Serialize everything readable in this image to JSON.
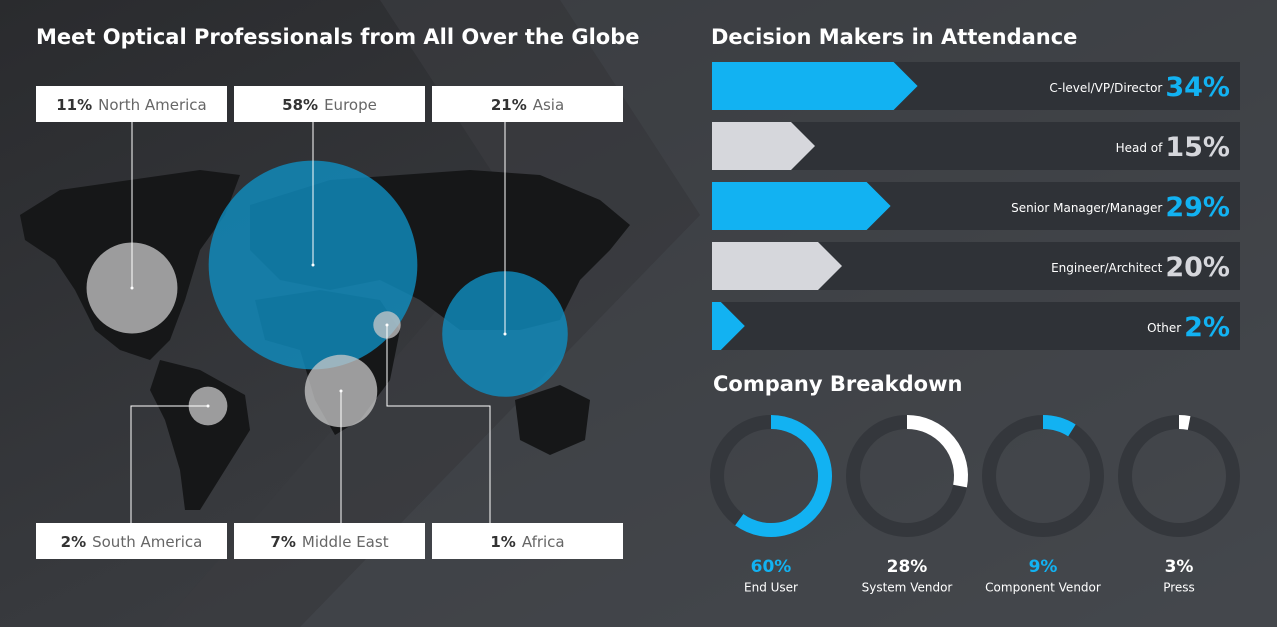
{
  "chart_data": [
    {
      "type": "bubble",
      "title": "Meet Optical Professionals from All Over the Globe",
      "categories": [
        "North America",
        "Europe",
        "Asia",
        "South America",
        "Middle East",
        "Africa"
      ],
      "values": [
        11,
        58,
        21,
        2,
        7,
        1
      ],
      "value_labels": [
        "11%",
        "58%",
        "21%",
        "2%",
        "7%",
        "1%"
      ],
      "colors": [
        "#c9c9c9",
        "#0f8fc2",
        "#0f8fc2",
        "#c9c9c9",
        "#c9c9c9",
        "#c9c9c9"
      ]
    },
    {
      "type": "hbar",
      "title": "Decision Makers in Attendance",
      "categories": [
        "C-level/VP/Director",
        "Head of",
        "Senior Manager/Manager",
        "Engineer/Architect",
        "Other"
      ],
      "values": [
        34,
        15,
        29,
        20,
        2
      ],
      "value_labels": [
        "34%",
        "15%",
        "29%",
        "20%",
        "2%"
      ],
      "colors": [
        "#12b2f2",
        "#d6d7dc",
        "#12b2f2",
        "#d6d7dc",
        "#12b2f2"
      ]
    },
    {
      "type": "donut",
      "title": "Company Breakdown",
      "categories": [
        "End User",
        "System Vendor",
        "Component Vendor",
        "Press"
      ],
      "values": [
        60,
        28,
        9,
        3
      ],
      "value_labels": [
        "60%",
        "28%",
        "9%",
        "3%"
      ],
      "colors": [
        "#12b2f2",
        "#ffffff",
        "#12b2f2",
        "#ffffff"
      ]
    }
  ]
}
